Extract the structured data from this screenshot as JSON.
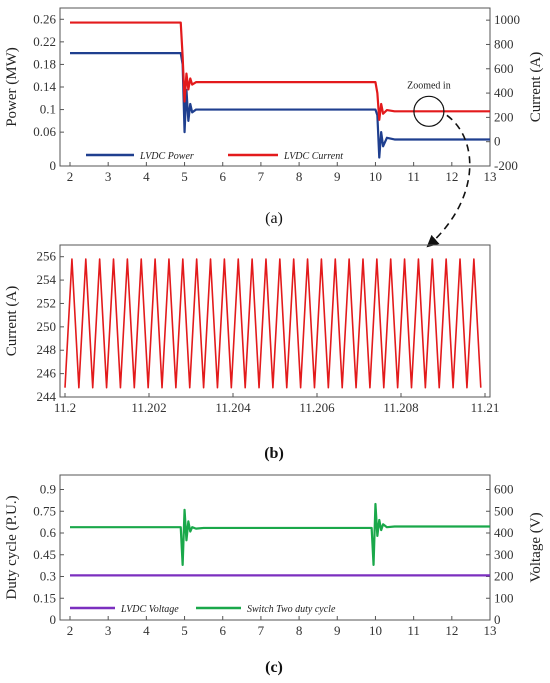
{
  "chart_data": [
    {
      "id": "a",
      "type": "line",
      "panel_label": "(a)",
      "xlabel": "",
      "ylabel": "Power (MW)",
      "y2label": "Current (A)",
      "xlim": [
        2,
        13
      ],
      "ylim": [
        0,
        0.28
      ],
      "y2lim": [
        -200,
        1100
      ],
      "xticks": [
        "2",
        "3",
        "4",
        "5",
        "6",
        "7",
        "8",
        "9",
        "10",
        "11",
        "12",
        "13"
      ],
      "yticks": [
        "0",
        "0.06",
        "0.1",
        "0.14",
        "0.18",
        "0.22",
        "0.26"
      ],
      "y2ticks": [
        "-200",
        "0",
        "200",
        "400",
        "600",
        "800",
        "1000"
      ],
      "legend_placement": "bottom-left",
      "annotation": "Zoomed in",
      "series": [
        {
          "name": "LVDC Power",
          "color": "#1f3f8f",
          "axis": "left",
          "x": [
            2,
            4.9,
            4.95,
            5.0,
            5.05,
            5.1,
            5.15,
            5.2,
            5.3,
            5.5,
            10.0,
            10.05,
            10.1,
            10.15,
            10.2,
            10.3,
            10.5,
            13
          ],
          "y": [
            0.2,
            0.2,
            0.18,
            0.06,
            0.135,
            0.08,
            0.11,
            0.095,
            0.1,
            0.1,
            0.1,
            0.09,
            0.015,
            0.06,
            0.035,
            0.05,
            0.047,
            0.047
          ]
        },
        {
          "name": "LVDC Current",
          "color": "#e31a1c",
          "axis": "right",
          "x": [
            2,
            4.9,
            4.95,
            5.0,
            5.05,
            5.1,
            5.15,
            5.2,
            5.3,
            5.5,
            10.0,
            10.05,
            10.1,
            10.15,
            10.2,
            10.3,
            10.5,
            13
          ],
          "y": [
            980,
            980,
            700,
            330,
            560,
            430,
            520,
            470,
            490,
            490,
            490,
            400,
            180,
            310,
            230,
            260,
            250,
            250
          ]
        }
      ]
    },
    {
      "id": "b",
      "type": "line",
      "panel_label": "(b)",
      "xlabel": "",
      "ylabel": "Current (A)",
      "xlim": [
        11.2,
        11.21
      ],
      "ylim": [
        244,
        257
      ],
      "xticks": [
        "11.2",
        "11.202",
        "11.204",
        "11.206",
        "11.208",
        "11.21"
      ],
      "yticks": [
        "244",
        "246",
        "248",
        "250",
        "252",
        "254",
        "256"
      ],
      "series": [
        {
          "name": "",
          "color": "#e31a1c",
          "waveform": "triangle",
          "min": 244.8,
          "max": 255.8,
          "period": 0.00033
        }
      ]
    },
    {
      "id": "c",
      "type": "line",
      "panel_label": "(c)",
      "xlabel": "",
      "ylabel": "Duty cycle (P.U.)",
      "y2label": "Voltage (V)",
      "xlim": [
        2,
        13
      ],
      "ylim": [
        0,
        1.0
      ],
      "y2lim": [
        0,
        666.7
      ],
      "xticks": [
        "2",
        "3",
        "4",
        "5",
        "6",
        "7",
        "8",
        "9",
        "10",
        "11",
        "12",
        "13"
      ],
      "yticks": [
        "0",
        "0.15",
        "0.3",
        "0.45",
        "0.6",
        "0.75",
        "0.9"
      ],
      "y2ticks": [
        "0",
        "100",
        "200",
        "300",
        "400",
        "500",
        "600"
      ],
      "legend_placement": "bottom-left",
      "series": [
        {
          "name": "LVDC Voltage",
          "color": "#7b2fbf",
          "axis": "right",
          "x": [
            2,
            13
          ],
          "y": [
            205,
            205
          ]
        },
        {
          "name": "Switch Two duty cycle",
          "color": "#1aa84a",
          "axis": "left",
          "x": [
            2,
            4.9,
            4.95,
            5.0,
            5.05,
            5.1,
            5.15,
            5.2,
            5.3,
            5.5,
            9.9,
            9.95,
            10.0,
            10.05,
            10.1,
            10.15,
            10.2,
            10.3,
            10.5,
            13
          ],
          "y": [
            0.64,
            0.64,
            0.38,
            0.76,
            0.55,
            0.68,
            0.61,
            0.64,
            0.63,
            0.635,
            0.635,
            0.38,
            0.8,
            0.58,
            0.69,
            0.62,
            0.66,
            0.64,
            0.645,
            0.645
          ]
        }
      ]
    }
  ]
}
